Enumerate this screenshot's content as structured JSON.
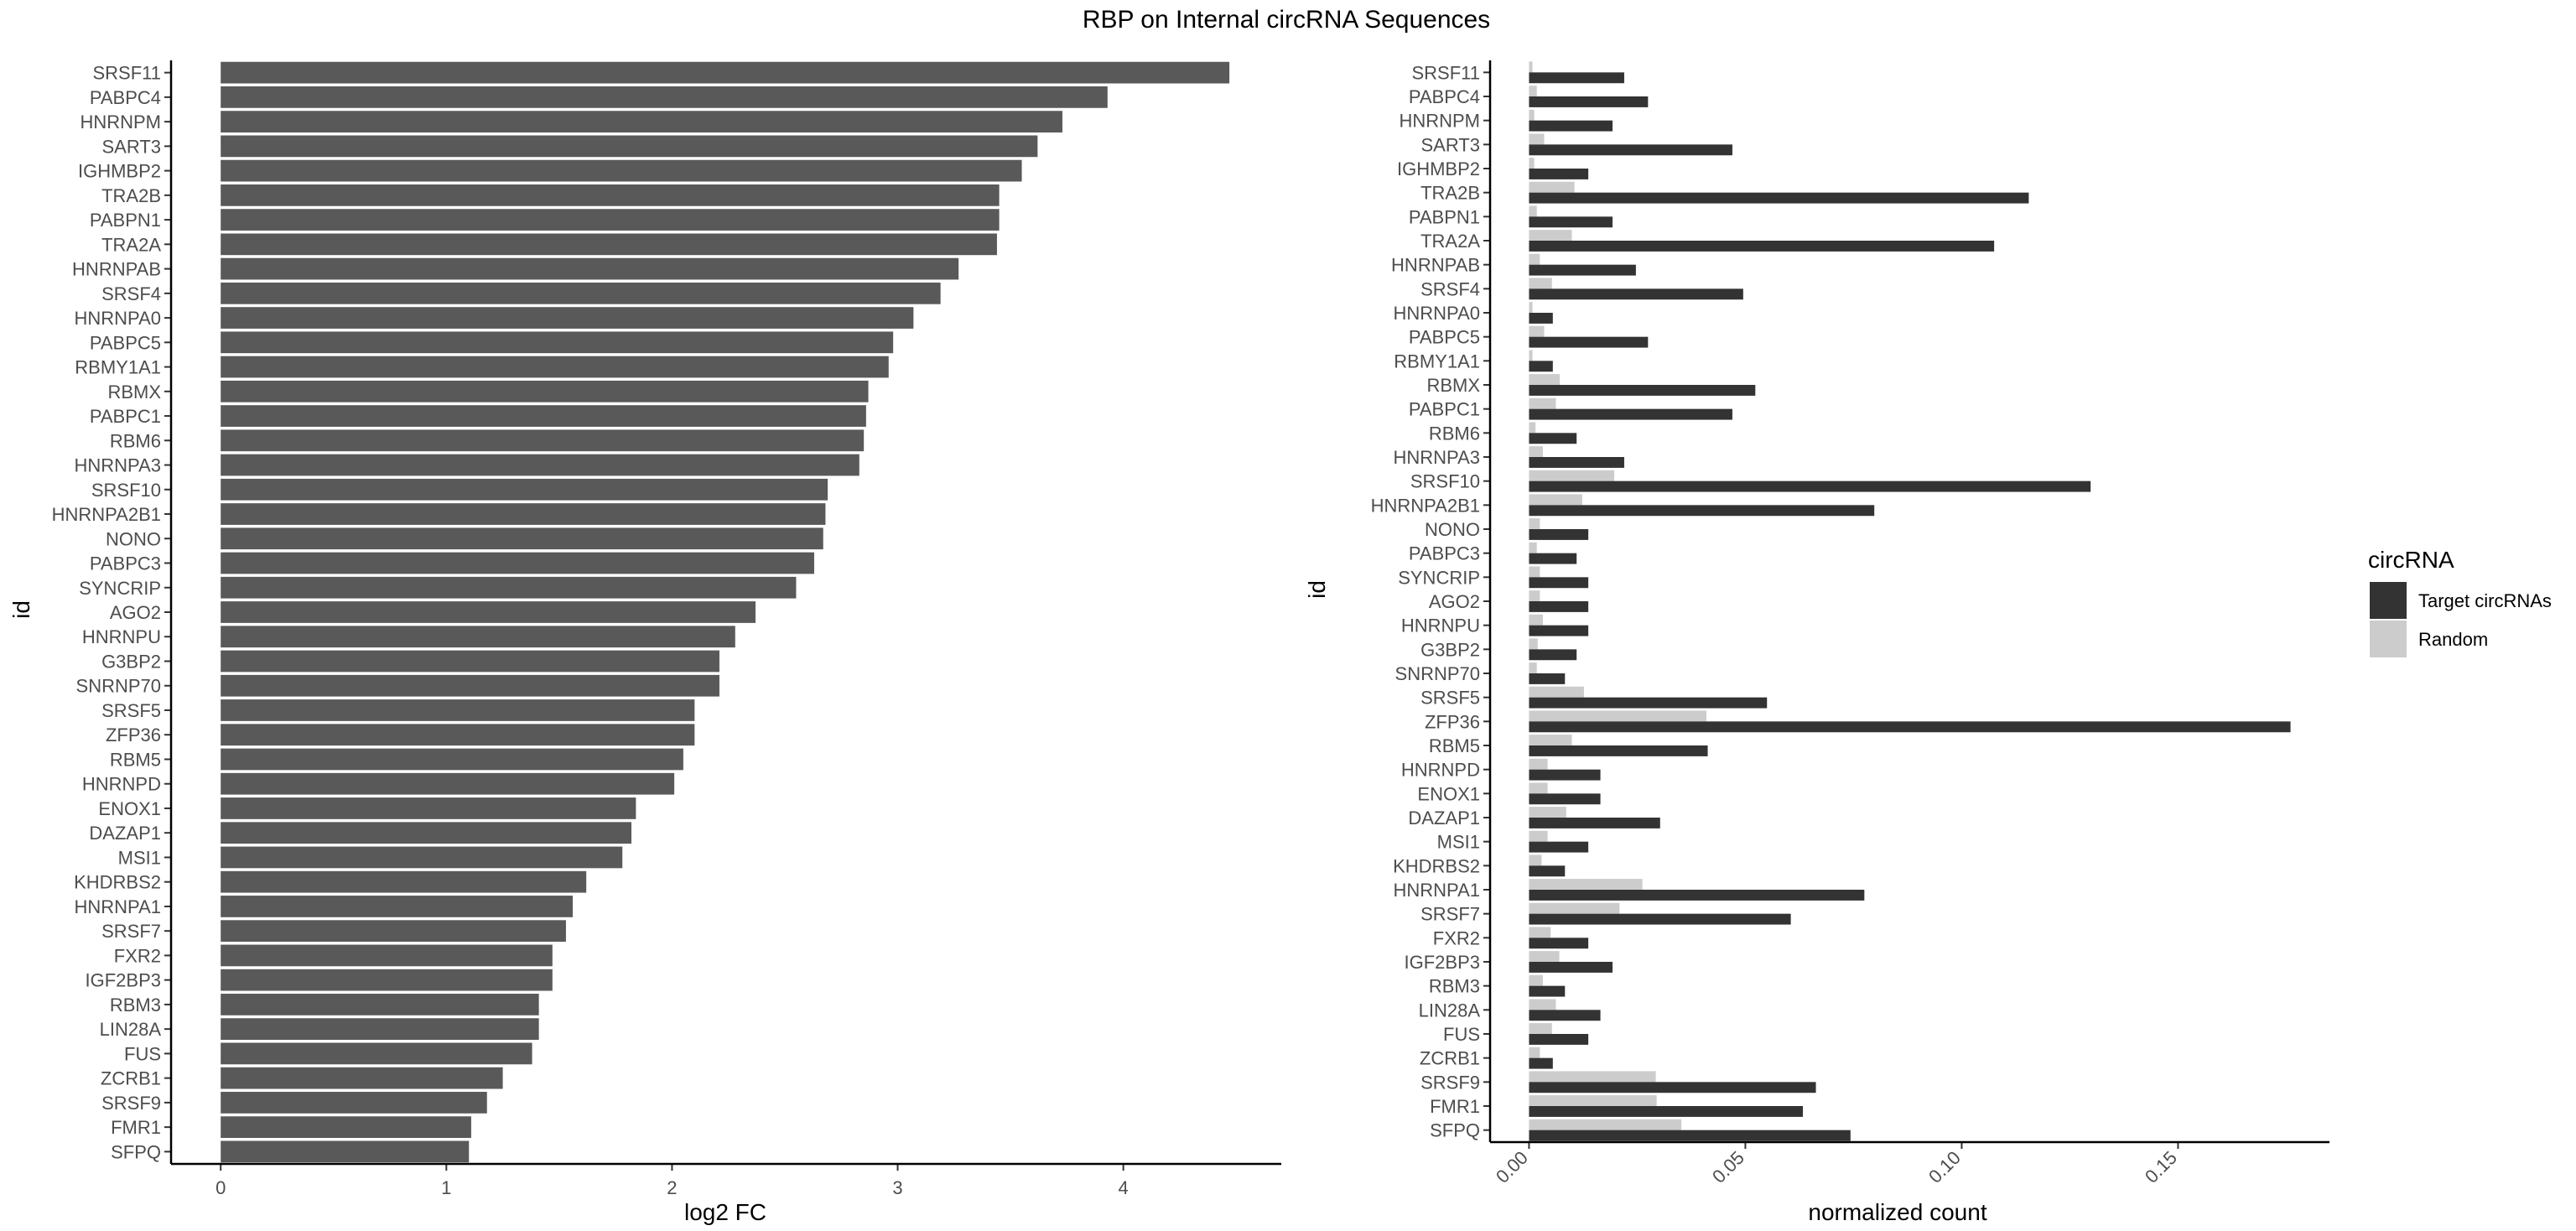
{
  "title": "RBP on Internal circRNA Sequences",
  "colors": {
    "bar_left": "#595959",
    "target": "#333333",
    "random": "#cccccc"
  },
  "chart_data": [
    {
      "type": "bar",
      "orientation": "horizontal",
      "xlabel": "log2 FC",
      "ylabel": "id",
      "xlim": [
        -0.22,
        4.7
      ],
      "xticks": [
        "0",
        "1",
        "2",
        "3",
        "4"
      ],
      "categories": [
        "SRSF11",
        "PABPC4",
        "HNRNPM",
        "SART3",
        "IGHMBP2",
        "TRA2B",
        "PABPN1",
        "TRA2A",
        "HNRNPAB",
        "SRSF4",
        "HNRNPA0",
        "PABPC5",
        "RBMY1A1",
        "RBMX",
        "PABPC1",
        "RBM6",
        "HNRNPA3",
        "SRSF10",
        "HNRNPA2B1",
        "NONO",
        "PABPC3",
        "SYNCRIP",
        "AGO2",
        "HNRNPU",
        "G3BP2",
        "SNRNP70",
        "SRSF5",
        "ZFP36",
        "RBM5",
        "HNRNPD",
        "ENOX1",
        "DAZAP1",
        "MSI1",
        "KHDRBS2",
        "HNRNPA1",
        "SRSF7",
        "FXR2",
        "IGF2BP3",
        "RBM3",
        "LIN28A",
        "FUS",
        "ZCRB1",
        "SRSF9",
        "FMR1",
        "SFPQ"
      ],
      "values": [
        4.47,
        3.93,
        3.73,
        3.62,
        3.55,
        3.45,
        3.45,
        3.44,
        3.27,
        3.19,
        3.07,
        2.98,
        2.96,
        2.87,
        2.86,
        2.85,
        2.83,
        2.69,
        2.68,
        2.67,
        2.63,
        2.55,
        2.37,
        2.28,
        2.21,
        2.21,
        2.1,
        2.1,
        2.05,
        2.01,
        1.84,
        1.82,
        1.78,
        1.62,
        1.56,
        1.53,
        1.47,
        1.47,
        1.41,
        1.41,
        1.38,
        1.25,
        1.18,
        1.11,
        1.1
      ]
    },
    {
      "type": "bar",
      "orientation": "horizontal",
      "xlabel": "normalized count",
      "ylabel": "id",
      "xlim": [
        -0.009,
        0.185
      ],
      "xticks": [
        "0.00",
        "0.05",
        "0.10",
        "0.15"
      ],
      "categories": [
        "SRSF11",
        "PABPC4",
        "HNRNPM",
        "SART3",
        "IGHMBP2",
        "TRA2B",
        "PABPN1",
        "TRA2A",
        "HNRNPAB",
        "SRSF4",
        "HNRNPA0",
        "PABPC5",
        "RBMY1A1",
        "RBMX",
        "PABPC1",
        "RBM6",
        "HNRNPA3",
        "SRSF10",
        "HNRNPA2B1",
        "NONO",
        "PABPC3",
        "SYNCRIP",
        "AGO2",
        "HNRNPU",
        "G3BP2",
        "SNRNP70",
        "SRSF5",
        "ZFP36",
        "RBM5",
        "HNRNPD",
        "ENOX1",
        "DAZAP1",
        "MSI1",
        "KHDRBS2",
        "HNRNPA1",
        "SRSF7",
        "FXR2",
        "IGF2BP3",
        "RBM3",
        "LIN28A",
        "FUS",
        "ZCRB1",
        "SRSF9",
        "FMR1",
        "SFPQ"
      ],
      "legend_title": "circRNA",
      "legend_position": "right",
      "series": [
        {
          "name": "Target circRNAs",
          "values": [
            0.022,
            0.0275,
            0.0193,
            0.047,
            0.0137,
            0.1155,
            0.0193,
            0.1075,
            0.0247,
            0.0495,
            0.0055,
            0.0275,
            0.0055,
            0.0523,
            0.047,
            0.011,
            0.022,
            0.1298,
            0.0798,
            0.0137,
            0.011,
            0.0137,
            0.0137,
            0.0137,
            0.011,
            0.0083,
            0.055,
            0.176,
            0.0413,
            0.0165,
            0.0165,
            0.0303,
            0.0137,
            0.0083,
            0.0775,
            0.0605,
            0.0137,
            0.0193,
            0.0083,
            0.0165,
            0.0137,
            0.0055,
            0.0663,
            0.0633,
            0.0743
          ]
        },
        {
          "name": "Random",
          "values": [
            0.0008,
            0.0018,
            0.0012,
            0.0035,
            0.0012,
            0.0105,
            0.0018,
            0.0099,
            0.0025,
            0.0053,
            0.0008,
            0.0035,
            0.0008,
            0.0071,
            0.0062,
            0.0015,
            0.0032,
            0.0197,
            0.0123,
            0.0025,
            0.0018,
            0.0025,
            0.0025,
            0.0032,
            0.002,
            0.0018,
            0.0127,
            0.041,
            0.0099,
            0.0043,
            0.0043,
            0.0086,
            0.0043,
            0.0029,
            0.0262,
            0.0209,
            0.005,
            0.007,
            0.0032,
            0.0062,
            0.0053,
            0.0025,
            0.0293,
            0.0295,
            0.0352
          ]
        }
      ]
    }
  ]
}
